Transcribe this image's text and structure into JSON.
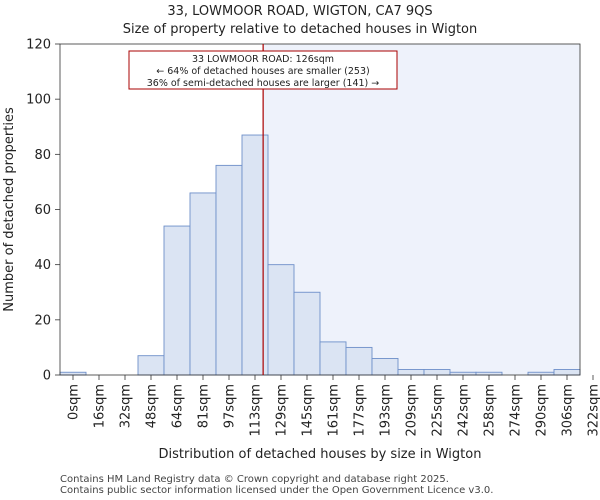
{
  "header": {
    "title": "33, LOWMOOR ROAD, WIGTON, CA7 9QS",
    "subtitle": "Size of property relative to detached houses in Wigton"
  },
  "footer": {
    "line1": "Contains HM Land Registry data © Crown copyright and database right 2025.",
    "line2": "Contains public sector information licensed under the Open Government Licence v3.0."
  },
  "colors": {
    "bar_fill": "#dbe4f3",
    "bar_stroke": "#6e8fc9",
    "highlight_bg": "#eef2fb",
    "marker_line": "#aa0000",
    "annotation_border": "#aa0000"
  },
  "chart_data": {
    "type": "bar",
    "title": "33, LOWMOOR ROAD, WIGTON, CA7 9QS",
    "subtitle": "Size of property relative to detached houses in Wigton",
    "xlabel": "Distribution of detached houses by size in Wigton",
    "ylabel": "Number of detached properties",
    "ylim": [
      0,
      120
    ],
    "yticks": [
      0,
      20,
      40,
      60,
      80,
      100,
      120
    ],
    "bin_edges": [
      0,
      16,
      32,
      48,
      64,
      81,
      97,
      113,
      129,
      145,
      161,
      177,
      193,
      209,
      225,
      242,
      258,
      274,
      290,
      306,
      322
    ],
    "tick_labels": [
      "0sqm",
      "16sqm",
      "32sqm",
      "48sqm",
      "64sqm",
      "81sqm",
      "97sqm",
      "113sqm",
      "129sqm",
      "145sqm",
      "161sqm",
      "177sqm",
      "193sqm",
      "209sqm",
      "225sqm",
      "242sqm",
      "258sqm",
      "274sqm",
      "290sqm",
      "306sqm",
      "322sqm"
    ],
    "values": [
      1,
      0,
      0,
      7,
      54,
      66,
      76,
      87,
      40,
      30,
      12,
      10,
      6,
      2,
      2,
      1,
      1,
      0,
      1,
      2
    ],
    "marker": {
      "value": 126,
      "line1": "33 LOWMOOR ROAD: 126sqm",
      "line2": "← 64% of detached houses are smaller (253)",
      "line3": "36% of semi-detached houses are larger (141) →"
    },
    "grid": false
  }
}
